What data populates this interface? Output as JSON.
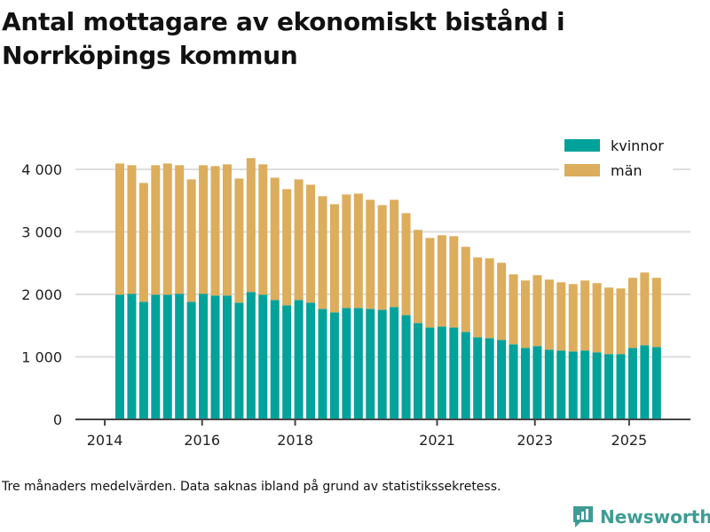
{
  "title": "Antal mottagare av ekonomiskt bistånd i Norrköpings kommun",
  "note": "Tre månaders medelvärden. Data saknas ibland på grund av statistikssekretess.",
  "logo": "Newsworthy",
  "colors": {
    "kvinnor": "#00a29a",
    "man": "#dcad5c",
    "grid": "#dddddd",
    "axis": "#444444"
  },
  "chart_data": {
    "type": "bar",
    "stacked": true,
    "title": "Antal mottagare av ekonomiskt bistånd i Norrköpings kommun",
    "xlabel": "",
    "ylabel": "",
    "ylim": [
      0,
      4500
    ],
    "yticks": [
      {
        "value": 0,
        "label": "0"
      },
      {
        "value": 1000,
        "label": "1 000"
      },
      {
        "value": 2000,
        "label": "2 000"
      },
      {
        "value": 3000,
        "label": "3 000"
      },
      {
        "value": 4000,
        "label": "4 000"
      }
    ],
    "xticks": [
      {
        "at": -1.26,
        "label": "2014"
      },
      {
        "at": 6.9,
        "label": "2016"
      },
      {
        "at": 14.7,
        "label": "2018"
      },
      {
        "at": 26.6,
        "label": "2021"
      },
      {
        "at": 34.8,
        "label": "2023"
      },
      {
        "at": 42.7,
        "label": "2025"
      }
    ],
    "legend": {
      "position": "top-right",
      "entries": [
        "kvinnor",
        "män"
      ]
    },
    "series": [
      {
        "name": "kvinnor",
        "values": [
          1995,
          2009,
          1882,
          1995,
          1995,
          2009,
          1882,
          2009,
          1981,
          1981,
          1868,
          2038,
          1995,
          1910,
          1825,
          1910,
          1868,
          1768,
          1712,
          1782,
          1782,
          1768,
          1754,
          1797,
          1669,
          1541,
          1470,
          1485,
          1470,
          1399,
          1314,
          1300,
          1272,
          1201,
          1144,
          1173,
          1116,
          1102,
          1087,
          1102,
          1073,
          1045,
          1045,
          1144,
          1187,
          1158
        ]
      },
      {
        "name": "män",
        "values": [
          2099,
          2057,
          1900,
          2071,
          2099,
          2057,
          1957,
          2057,
          2071,
          2099,
          1985,
          2142,
          2085,
          1957,
          1858,
          1929,
          1886,
          1802,
          1730,
          1816,
          1830,
          1745,
          1674,
          1716,
          1631,
          1490,
          1433,
          1461,
          1461,
          1362,
          1277,
          1277,
          1234,
          1120,
          1078,
          1134,
          1120,
          1092,
          1078,
          1120,
          1107,
          1064,
          1050,
          1121,
          1163,
          1107
        ]
      }
    ]
  }
}
